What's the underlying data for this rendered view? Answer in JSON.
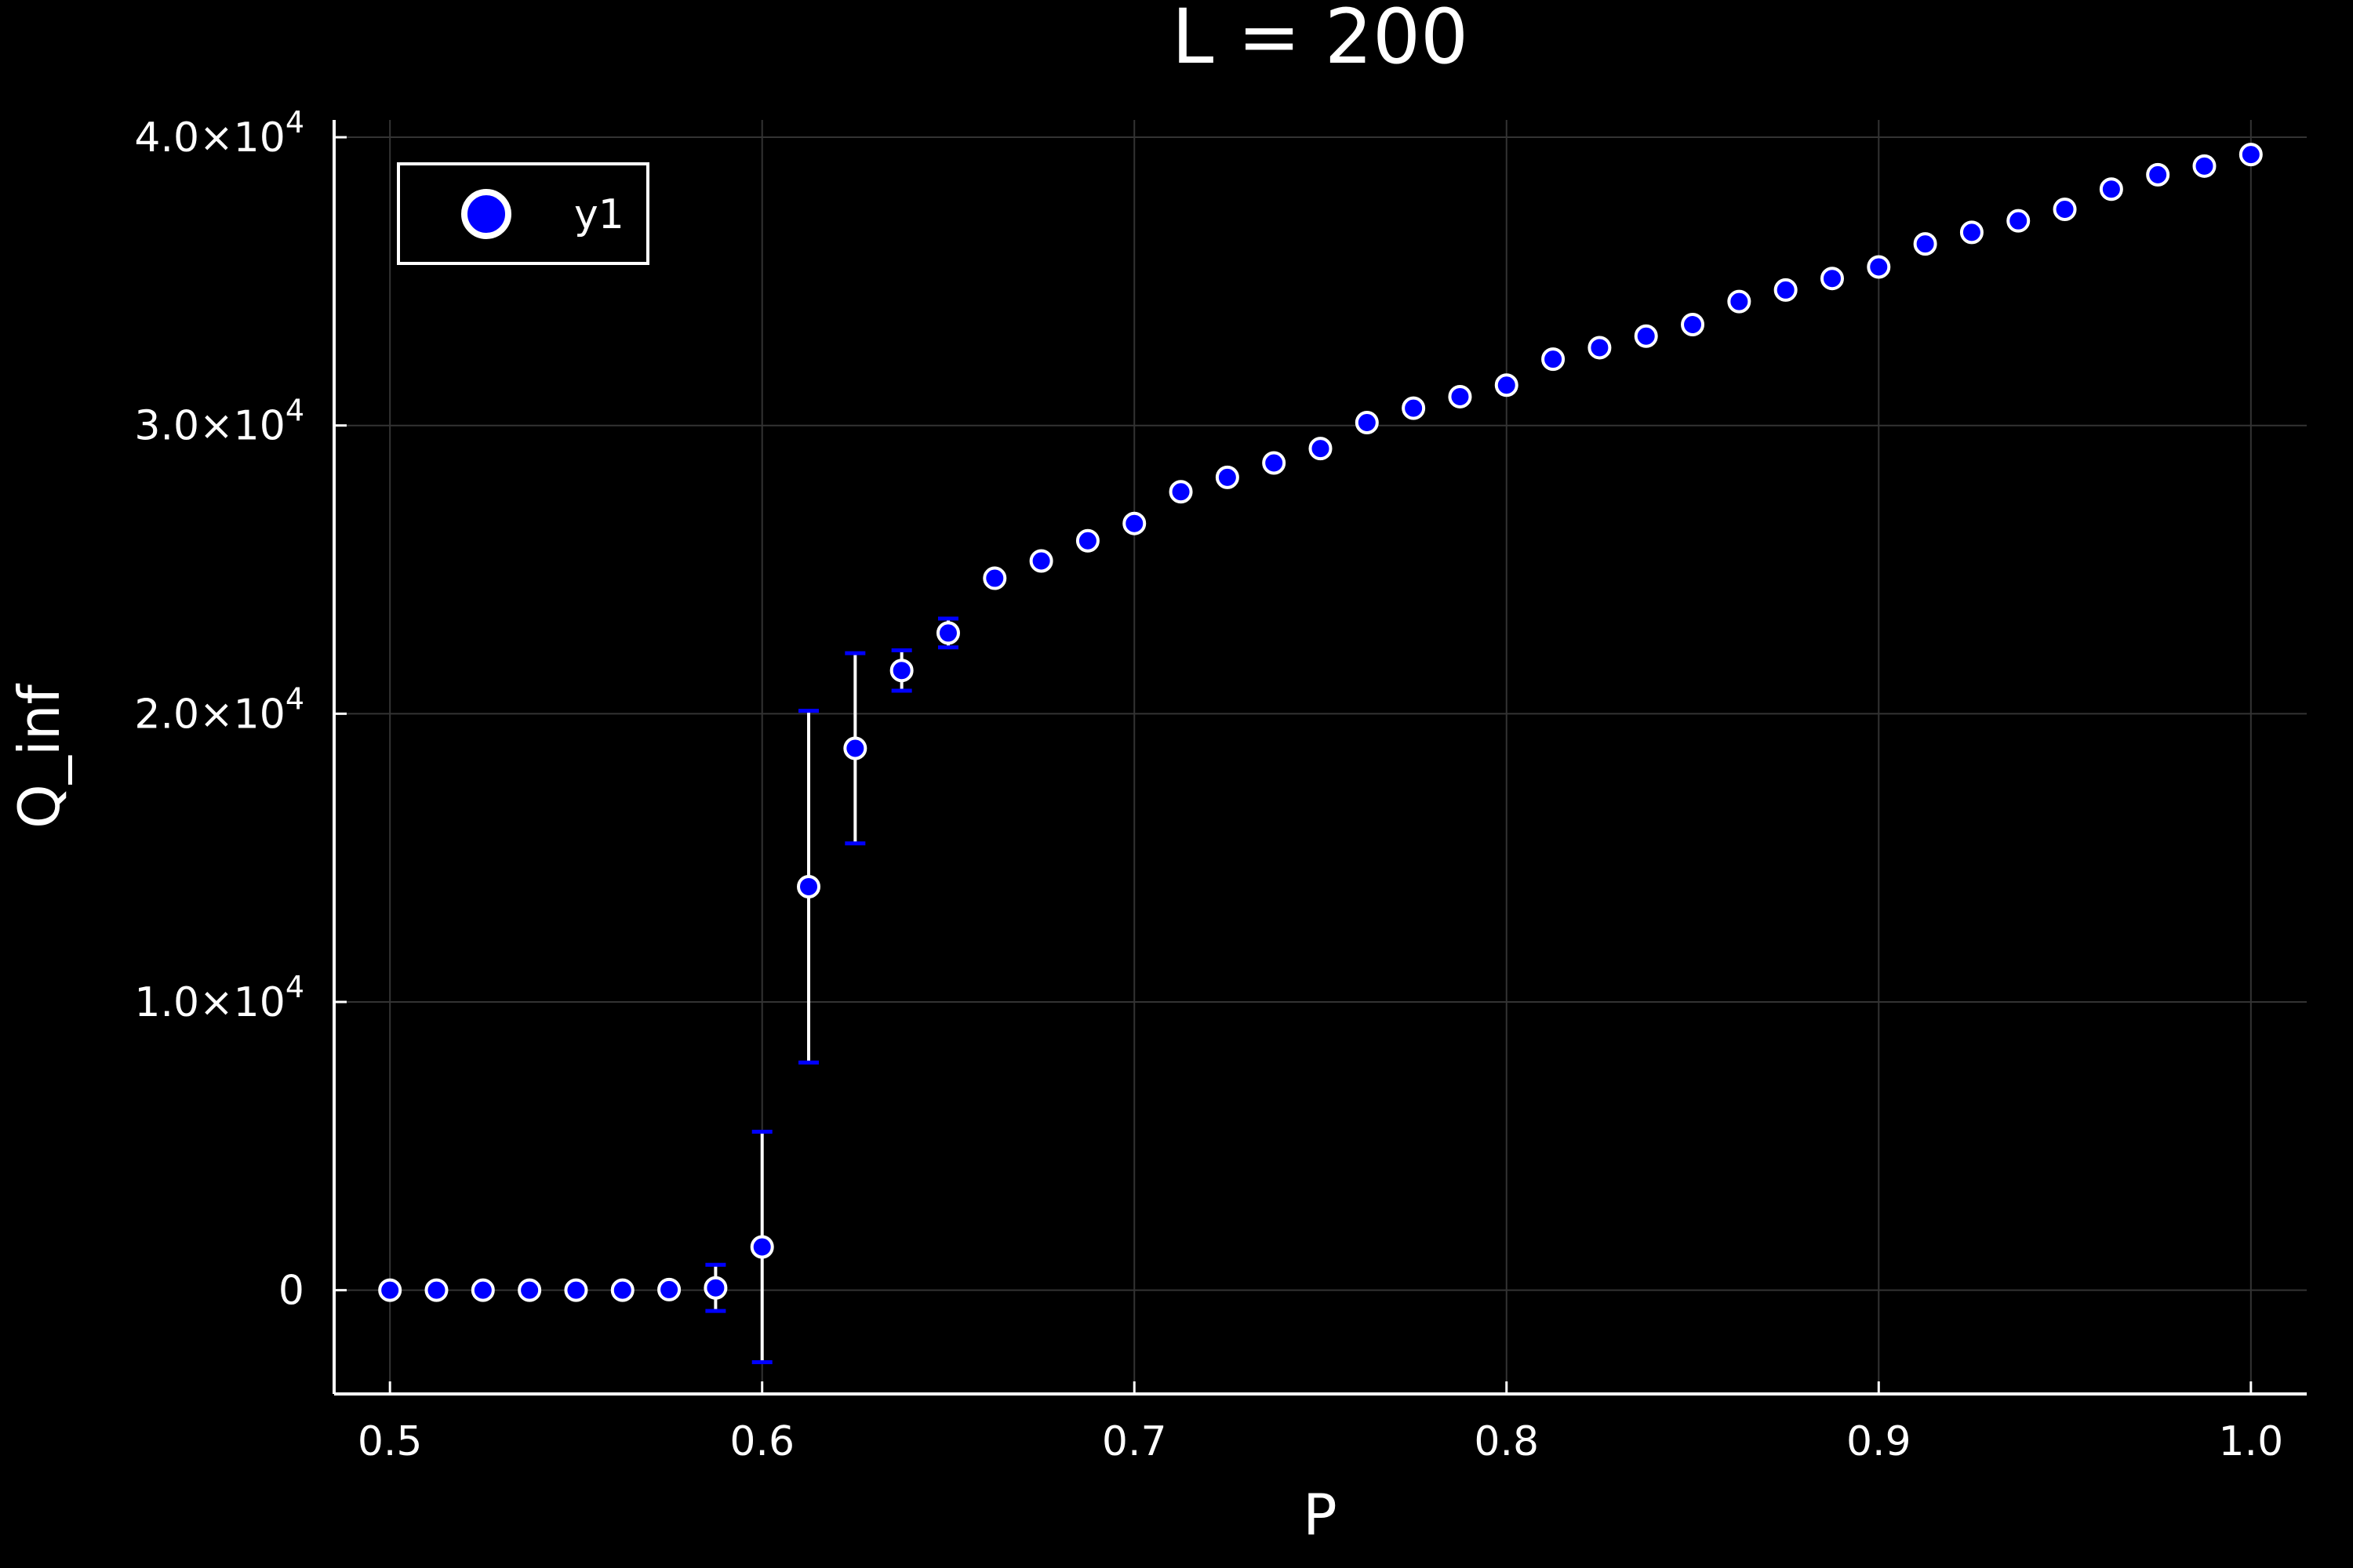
{
  "colors": {
    "background": "#000000",
    "foreground": "#ffffff",
    "grid": "#333333",
    "marker_fill": "#0000ff",
    "marker_stroke": "#ffffff",
    "errorbar_cap": "#0000ff"
  },
  "chart_data": {
    "type": "scatter",
    "title": "L = 200",
    "xlabel": "P",
    "ylabel": "Q_inf",
    "xlim": [
      0.485,
      1.015
    ],
    "ylim": [
      -3600,
      40600
    ],
    "grid": true,
    "legend_position": "top-left",
    "x_ticks": [
      {
        "value": 0.5,
        "label": "0.5"
      },
      {
        "value": 0.6,
        "label": "0.6"
      },
      {
        "value": 0.7,
        "label": "0.7"
      },
      {
        "value": 0.8,
        "label": "0.8"
      },
      {
        "value": 0.9,
        "label": "0.9"
      },
      {
        "value": 1.0,
        "label": "1.0"
      }
    ],
    "y_ticks": [
      {
        "value": 0,
        "mantissa": "0",
        "exponent": ""
      },
      {
        "value": 10000,
        "mantissa": "1.0×10",
        "exponent": "4"
      },
      {
        "value": 20000,
        "mantissa": "2.0×10",
        "exponent": "4"
      },
      {
        "value": 30000,
        "mantissa": "3.0×10",
        "exponent": "4"
      },
      {
        "value": 40000,
        "mantissa": "4.0×10",
        "exponent": "4"
      }
    ],
    "series": [
      {
        "name": "y1",
        "x": [
          0.5,
          0.5125,
          0.525,
          0.5375,
          0.55,
          0.5625,
          0.575,
          0.5875,
          0.6,
          0.6125,
          0.625,
          0.6375,
          0.65,
          0.6625,
          0.675,
          0.6875,
          0.7,
          0.7125,
          0.725,
          0.7375,
          0.75,
          0.7625,
          0.775,
          0.7875,
          0.8,
          0.8125,
          0.825,
          0.8375,
          0.85,
          0.8625,
          0.875,
          0.8875,
          0.9,
          0.9125,
          0.925,
          0.9375,
          0.95,
          0.9625,
          0.975,
          0.9875,
          1.0
        ],
        "y": [
          0,
          0,
          0,
          0,
          0,
          0,
          20,
          80,
          1500,
          14000,
          18800,
          21500,
          22800,
          24700,
          25300,
          26000,
          26600,
          27700,
          28200,
          28700,
          29200,
          30100,
          30600,
          31000,
          31400,
          32300,
          32700,
          33100,
          33500,
          34300,
          34700,
          35100,
          35500,
          36300,
          36700,
          37100,
          37500,
          38200,
          38700,
          39000,
          39400
        ],
        "y_err": [
          0,
          0,
          0,
          0,
          0,
          0,
          0,
          800,
          4000,
          6100,
          3300,
          700,
          500,
          0,
          0,
          0,
          0,
          0,
          0,
          0,
          0,
          0,
          0,
          0,
          0,
          0,
          0,
          0,
          0,
          0,
          0,
          0,
          0,
          0,
          0,
          0,
          0,
          0,
          0,
          0,
          0
        ]
      }
    ]
  }
}
